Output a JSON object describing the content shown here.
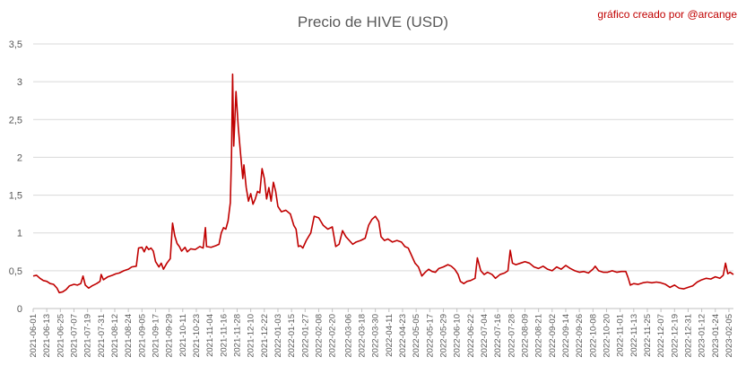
{
  "chart_data": {
    "type": "line",
    "title": "Precio de HIVE (USD)",
    "credit": "gráfico creado por @arcange",
    "ylim": [
      0,
      3.5
    ],
    "y_ticks": [
      "0",
      "0,5",
      "1",
      "1,5",
      "2",
      "2,5",
      "3",
      "3,5"
    ],
    "x_range": [
      "2021-06-01",
      "2023-02-09"
    ],
    "x_ticks": [
      "2021-06-01",
      "2021-06-13",
      "2021-06-25",
      "2021-07-07",
      "2021-07-19",
      "2021-07-31",
      "2021-08-12",
      "2021-08-24",
      "2021-09-05",
      "2021-09-17",
      "2021-09-29",
      "2021-10-11",
      "2021-10-23",
      "2021-11-04",
      "2021-11-16",
      "2021-11-28",
      "2021-12-10",
      "2021-12-22",
      "2022-01-03",
      "2022-01-15",
      "2022-01-27",
      "2022-02-08",
      "2022-02-20",
      "2022-03-06",
      "2022-03-18",
      "2022-03-30",
      "2022-04-11",
      "2022-04-23",
      "2022-05-05",
      "2022-05-17",
      "2022-05-29",
      "2022-06-10",
      "2022-06-22",
      "2022-07-04",
      "2022-07-16",
      "2022-07-28",
      "2022-08-09",
      "2022-08-21",
      "2022-09-02",
      "2022-09-14",
      "2022-09-26",
      "2022-10-08",
      "2022-10-20",
      "2022-11-01",
      "2022-11-13",
      "2022-11-25",
      "2022-12-07",
      "2022-12-19",
      "2022-12-31",
      "2023-01-12",
      "2023-01-24",
      "2023-02-05"
    ],
    "grid": true,
    "legend": "none",
    "series": [
      {
        "color": "#c00000",
        "points": [
          [
            "2021-06-01",
            0.43
          ],
          [
            "2021-06-04",
            0.44
          ],
          [
            "2021-06-07",
            0.4
          ],
          [
            "2021-06-10",
            0.37
          ],
          [
            "2021-06-13",
            0.36
          ],
          [
            "2021-06-16",
            0.33
          ],
          [
            "2021-06-19",
            0.32
          ],
          [
            "2021-06-22",
            0.27
          ],
          [
            "2021-06-24",
            0.21
          ],
          [
            "2021-06-27",
            0.22
          ],
          [
            "2021-06-30",
            0.25
          ],
          [
            "2021-07-03",
            0.3
          ],
          [
            "2021-07-07",
            0.32
          ],
          [
            "2021-07-10",
            0.31
          ],
          [
            "2021-07-13",
            0.33
          ],
          [
            "2021-07-15",
            0.43
          ],
          [
            "2021-07-17",
            0.31
          ],
          [
            "2021-07-20",
            0.27
          ],
          [
            "2021-07-23",
            0.3
          ],
          [
            "2021-07-27",
            0.33
          ],
          [
            "2021-07-30",
            0.36
          ],
          [
            "2021-07-31",
            0.45
          ],
          [
            "2021-08-02",
            0.38
          ],
          [
            "2021-08-06",
            0.42
          ],
          [
            "2021-08-10",
            0.44
          ],
          [
            "2021-08-13",
            0.46
          ],
          [
            "2021-08-16",
            0.47
          ],
          [
            "2021-08-20",
            0.5
          ],
          [
            "2021-08-24",
            0.52
          ],
          [
            "2021-08-27",
            0.55
          ],
          [
            "2021-08-31",
            0.56
          ],
          [
            "2021-09-02",
            0.8
          ],
          [
            "2021-09-05",
            0.81
          ],
          [
            "2021-09-07",
            0.75
          ],
          [
            "2021-09-09",
            0.82
          ],
          [
            "2021-09-11",
            0.78
          ],
          [
            "2021-09-13",
            0.8
          ],
          [
            "2021-09-15",
            0.76
          ],
          [
            "2021-09-17",
            0.62
          ],
          [
            "2021-09-20",
            0.55
          ],
          [
            "2021-09-22",
            0.6
          ],
          [
            "2021-09-24",
            0.52
          ],
          [
            "2021-09-27",
            0.6
          ],
          [
            "2021-09-30",
            0.66
          ],
          [
            "2021-10-02",
            1.13
          ],
          [
            "2021-10-04",
            0.96
          ],
          [
            "2021-10-06",
            0.86
          ],
          [
            "2021-10-08",
            0.82
          ],
          [
            "2021-10-10",
            0.76
          ],
          [
            "2021-10-13",
            0.81
          ],
          [
            "2021-10-15",
            0.75
          ],
          [
            "2021-10-18",
            0.79
          ],
          [
            "2021-10-22",
            0.78
          ],
          [
            "2021-10-26",
            0.82
          ],
          [
            "2021-10-29",
            0.8
          ],
          [
            "2021-10-31",
            1.07
          ],
          [
            "2021-11-01",
            0.82
          ],
          [
            "2021-11-05",
            0.81
          ],
          [
            "2021-11-09",
            0.83
          ],
          [
            "2021-11-12",
            0.85
          ],
          [
            "2021-11-14",
            1.0
          ],
          [
            "2021-11-16",
            1.07
          ],
          [
            "2021-11-18",
            1.05
          ],
          [
            "2021-11-20",
            1.16
          ],
          [
            "2021-11-22",
            1.4
          ],
          [
            "2021-11-23",
            2.0
          ],
          [
            "2021-11-24",
            3.1
          ],
          [
            "2021-11-25",
            2.15
          ],
          [
            "2021-11-26",
            2.5
          ],
          [
            "2021-11-27",
            2.87
          ],
          [
            "2021-11-29",
            2.4
          ],
          [
            "2021-12-01",
            2.05
          ],
          [
            "2021-12-03",
            1.72
          ],
          [
            "2021-12-04",
            1.9
          ],
          [
            "2021-12-06",
            1.6
          ],
          [
            "2021-12-08",
            1.42
          ],
          [
            "2021-12-10",
            1.52
          ],
          [
            "2021-12-12",
            1.38
          ],
          [
            "2021-12-14",
            1.45
          ],
          [
            "2021-12-16",
            1.55
          ],
          [
            "2021-12-18",
            1.53
          ],
          [
            "2021-12-20",
            1.85
          ],
          [
            "2021-12-22",
            1.72
          ],
          [
            "2021-12-24",
            1.45
          ],
          [
            "2021-12-26",
            1.6
          ],
          [
            "2021-12-28",
            1.42
          ],
          [
            "2021-12-30",
            1.67
          ],
          [
            "2022-01-01",
            1.55
          ],
          [
            "2022-01-03",
            1.35
          ],
          [
            "2022-01-06",
            1.28
          ],
          [
            "2022-01-10",
            1.3
          ],
          [
            "2022-01-14",
            1.25
          ],
          [
            "2022-01-17",
            1.1
          ],
          [
            "2022-01-19",
            1.05
          ],
          [
            "2022-01-21",
            0.82
          ],
          [
            "2022-01-23",
            0.83
          ],
          [
            "2022-01-25",
            0.8
          ],
          [
            "2022-01-28",
            0.9
          ],
          [
            "2022-02-01",
            1.0
          ],
          [
            "2022-02-04",
            1.22
          ],
          [
            "2022-02-08",
            1.2
          ],
          [
            "2022-02-12",
            1.1
          ],
          [
            "2022-02-16",
            1.05
          ],
          [
            "2022-02-20",
            1.08
          ],
          [
            "2022-02-23",
            0.82
          ],
          [
            "2022-02-26",
            0.85
          ],
          [
            "2022-03-01",
            1.03
          ],
          [
            "2022-03-04",
            0.95
          ],
          [
            "2022-03-07",
            0.9
          ],
          [
            "2022-03-10",
            0.85
          ],
          [
            "2022-03-13",
            0.88
          ],
          [
            "2022-03-17",
            0.9
          ],
          [
            "2022-03-21",
            0.93
          ],
          [
            "2022-03-24",
            1.1
          ],
          [
            "2022-03-27",
            1.18
          ],
          [
            "2022-03-30",
            1.22
          ],
          [
            "2022-04-02",
            1.15
          ],
          [
            "2022-04-04",
            0.95
          ],
          [
            "2022-04-07",
            0.9
          ],
          [
            "2022-04-10",
            0.92
          ],
          [
            "2022-04-14",
            0.88
          ],
          [
            "2022-04-18",
            0.9
          ],
          [
            "2022-04-22",
            0.88
          ],
          [
            "2022-04-25",
            0.82
          ],
          [
            "2022-04-28",
            0.8
          ],
          [
            "2022-05-01",
            0.7
          ],
          [
            "2022-05-04",
            0.6
          ],
          [
            "2022-05-07",
            0.55
          ],
          [
            "2022-05-10",
            0.43
          ],
          [
            "2022-05-13",
            0.48
          ],
          [
            "2022-05-16",
            0.52
          ],
          [
            "2022-05-19",
            0.49
          ],
          [
            "2022-05-22",
            0.48
          ],
          [
            "2022-05-25",
            0.53
          ],
          [
            "2022-05-29",
            0.55
          ],
          [
            "2022-06-02",
            0.58
          ],
          [
            "2022-06-05",
            0.56
          ],
          [
            "2022-06-08",
            0.52
          ],
          [
            "2022-06-11",
            0.45
          ],
          [
            "2022-06-13",
            0.36
          ],
          [
            "2022-06-16",
            0.33
          ],
          [
            "2022-06-19",
            0.36
          ],
          [
            "2022-06-22",
            0.37
          ],
          [
            "2022-06-26",
            0.4
          ],
          [
            "2022-06-28",
            0.67
          ],
          [
            "2022-07-01",
            0.5
          ],
          [
            "2022-07-04",
            0.45
          ],
          [
            "2022-07-07",
            0.48
          ],
          [
            "2022-07-11",
            0.45
          ],
          [
            "2022-07-14",
            0.4
          ],
          [
            "2022-07-18",
            0.45
          ],
          [
            "2022-07-22",
            0.47
          ],
          [
            "2022-07-25",
            0.5
          ],
          [
            "2022-07-27",
            0.77
          ],
          [
            "2022-07-29",
            0.6
          ],
          [
            "2022-08-01",
            0.58
          ],
          [
            "2022-08-05",
            0.6
          ],
          [
            "2022-08-09",
            0.62
          ],
          [
            "2022-08-13",
            0.6
          ],
          [
            "2022-08-17",
            0.55
          ],
          [
            "2022-08-21",
            0.53
          ],
          [
            "2022-08-25",
            0.56
          ],
          [
            "2022-08-29",
            0.52
          ],
          [
            "2022-09-02",
            0.5
          ],
          [
            "2022-09-06",
            0.55
          ],
          [
            "2022-09-10",
            0.52
          ],
          [
            "2022-09-14",
            0.57
          ],
          [
            "2022-09-18",
            0.53
          ],
          [
            "2022-09-22",
            0.5
          ],
          [
            "2022-09-26",
            0.48
          ],
          [
            "2022-09-30",
            0.49
          ],
          [
            "2022-10-04",
            0.47
          ],
          [
            "2022-10-08",
            0.52
          ],
          [
            "2022-10-10",
            0.56
          ],
          [
            "2022-10-13",
            0.5
          ],
          [
            "2022-10-17",
            0.48
          ],
          [
            "2022-10-21",
            0.48
          ],
          [
            "2022-10-25",
            0.5
          ],
          [
            "2022-10-29",
            0.48
          ],
          [
            "2022-11-02",
            0.49
          ],
          [
            "2022-11-06",
            0.49
          ],
          [
            "2022-11-08",
            0.41
          ],
          [
            "2022-11-10",
            0.31
          ],
          [
            "2022-11-13",
            0.33
          ],
          [
            "2022-11-17",
            0.32
          ],
          [
            "2022-11-21",
            0.34
          ],
          [
            "2022-11-25",
            0.35
          ],
          [
            "2022-11-29",
            0.34
          ],
          [
            "2022-12-03",
            0.35
          ],
          [
            "2022-12-07",
            0.34
          ],
          [
            "2022-12-11",
            0.32
          ],
          [
            "2022-12-15",
            0.28
          ],
          [
            "2022-12-19",
            0.31
          ],
          [
            "2022-12-23",
            0.27
          ],
          [
            "2022-12-27",
            0.26
          ],
          [
            "2022-12-31",
            0.28
          ],
          [
            "2023-01-04",
            0.3
          ],
          [
            "2023-01-08",
            0.35
          ],
          [
            "2023-01-12",
            0.38
          ],
          [
            "2023-01-16",
            0.4
          ],
          [
            "2023-01-20",
            0.39
          ],
          [
            "2023-01-24",
            0.42
          ],
          [
            "2023-01-28",
            0.4
          ],
          [
            "2023-01-31",
            0.44
          ],
          [
            "2023-02-02",
            0.6
          ],
          [
            "2023-02-04",
            0.46
          ],
          [
            "2023-02-06",
            0.48
          ],
          [
            "2023-02-09",
            0.45
          ]
        ]
      }
    ]
  }
}
